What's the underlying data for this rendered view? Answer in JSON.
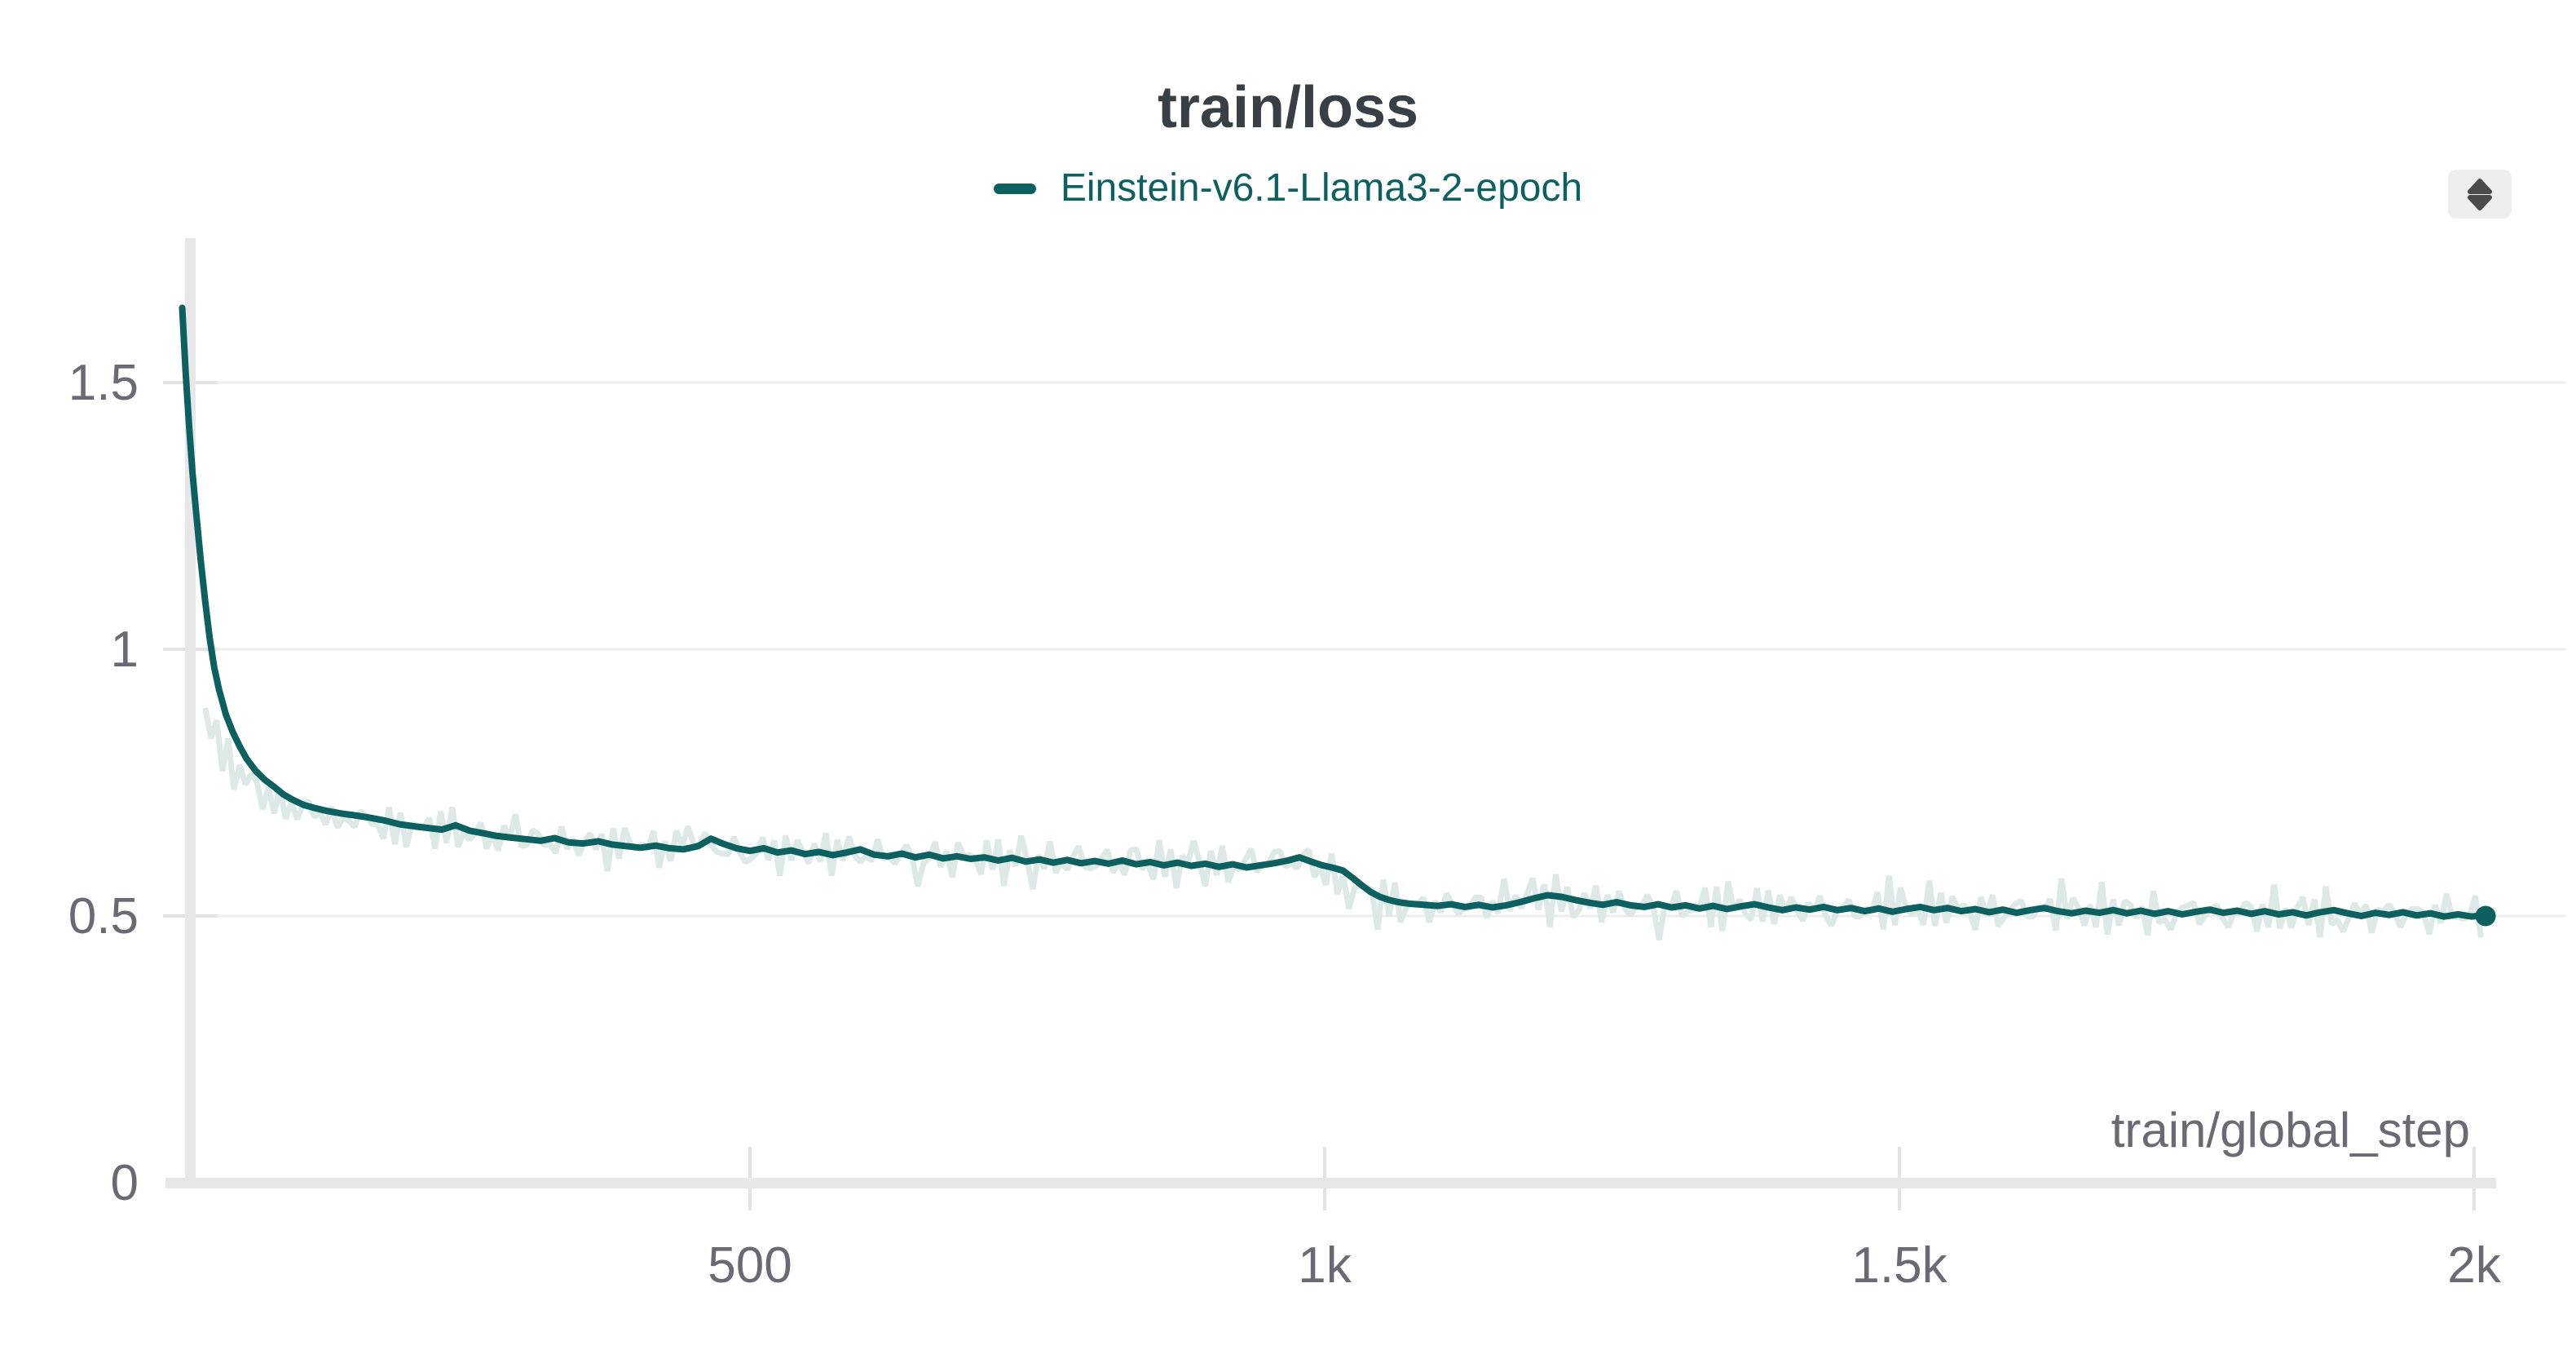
{
  "header": {
    "title": "train/loss"
  },
  "legend": {
    "items": [
      {
        "label": "Einstein-v6.1-Llama3-2-epoch",
        "color": "#0d6060"
      }
    ]
  },
  "controls": {
    "expander_icon": "up-down-arrows"
  },
  "colors": {
    "smoothed_line": "#0d6060",
    "raw_line": "#dde9e6",
    "grid": "#ededee",
    "axis_band": "#e7e7e9",
    "tick_stub": "#e3e3e5",
    "tick_label": "#696a74",
    "title_text": "#394045"
  },
  "chart_data": {
    "type": "line",
    "title": "train/loss",
    "xlabel": "train/global_step",
    "ylabel": "",
    "xlim": [
      0,
      2080
    ],
    "ylim": [
      0,
      1.75
    ],
    "grid": true,
    "legend_position": "top-center",
    "x_ticks": [
      {
        "value": 500,
        "label": "500"
      },
      {
        "value": 1000,
        "label": "1k"
      },
      {
        "value": 1500,
        "label": "1.5k"
      },
      {
        "value": 2000,
        "label": "2k"
      }
    ],
    "y_ticks": [
      {
        "value": 0,
        "label": "0"
      },
      {
        "value": 0.5,
        "label": "0.5"
      },
      {
        "value": 1,
        "label": "1"
      },
      {
        "value": 1.5,
        "label": "1.5"
      }
    ],
    "series": [
      {
        "name": "Einstein-v6.1-Llama3-2-epoch",
        "color": "#0d6060",
        "smoothing_note": "dark line = smoothed, light line = original (raw) values",
        "smoothed": [
          [
            6,
            1.64
          ],
          [
            9,
            1.52
          ],
          [
            12,
            1.42
          ],
          [
            15,
            1.33
          ],
          [
            18,
            1.26
          ],
          [
            22,
            1.17
          ],
          [
            26,
            1.09
          ],
          [
            30,
            1.02
          ],
          [
            34,
            0.965
          ],
          [
            38,
            0.925
          ],
          [
            44,
            0.878
          ],
          [
            50,
            0.845
          ],
          [
            56,
            0.818
          ],
          [
            62,
            0.795
          ],
          [
            70,
            0.772
          ],
          [
            78,
            0.755
          ],
          [
            86,
            0.742
          ],
          [
            94,
            0.728
          ],
          [
            102,
            0.718
          ],
          [
            112,
            0.708
          ],
          [
            122,
            0.702
          ],
          [
            132,
            0.697
          ],
          [
            145,
            0.692
          ],
          [
            158,
            0.688
          ],
          [
            170,
            0.684
          ],
          [
            182,
            0.679
          ],
          [
            195,
            0.672
          ],
          [
            208,
            0.668
          ],
          [
            220,
            0.665
          ],
          [
            232,
            0.662
          ],
          [
            244,
            0.67
          ],
          [
            256,
            0.66
          ],
          [
            268,
            0.655
          ],
          [
            280,
            0.65
          ],
          [
            292,
            0.647
          ],
          [
            305,
            0.644
          ],
          [
            318,
            0.641
          ],
          [
            330,
            0.646
          ],
          [
            342,
            0.638
          ],
          [
            355,
            0.636
          ],
          [
            368,
            0.64
          ],
          [
            380,
            0.634
          ],
          [
            392,
            0.631
          ],
          [
            405,
            0.628
          ],
          [
            418,
            0.632
          ],
          [
            430,
            0.627
          ],
          [
            442,
            0.625
          ],
          [
            455,
            0.631
          ],
          [
            466,
            0.645
          ],
          [
            476,
            0.636
          ],
          [
            488,
            0.627
          ],
          [
            500,
            0.622
          ],
          [
            512,
            0.627
          ],
          [
            524,
            0.619
          ],
          [
            536,
            0.623
          ],
          [
            548,
            0.616
          ],
          [
            560,
            0.62
          ],
          [
            572,
            0.614
          ],
          [
            584,
            0.619
          ],
          [
            596,
            0.625
          ],
          [
            608,
            0.615
          ],
          [
            620,
            0.612
          ],
          [
            632,
            0.617
          ],
          [
            644,
            0.61
          ],
          [
            656,
            0.615
          ],
          [
            668,
            0.608
          ],
          [
            680,
            0.612
          ],
          [
            692,
            0.607
          ],
          [
            704,
            0.61
          ],
          [
            716,
            0.604
          ],
          [
            728,
            0.609
          ],
          [
            740,
            0.602
          ],
          [
            752,
            0.606
          ],
          [
            764,
            0.6
          ],
          [
            776,
            0.605
          ],
          [
            788,
            0.599
          ],
          [
            800,
            0.603
          ],
          [
            812,
            0.598
          ],
          [
            824,
            0.604
          ],
          [
            836,
            0.597
          ],
          [
            848,
            0.601
          ],
          [
            860,
            0.595
          ],
          [
            872,
            0.6
          ],
          [
            884,
            0.594
          ],
          [
            896,
            0.598
          ],
          [
            908,
            0.592
          ],
          [
            920,
            0.597
          ],
          [
            932,
            0.591
          ],
          [
            944,
            0.595
          ],
          [
            956,
            0.599
          ],
          [
            968,
            0.604
          ],
          [
            978,
            0.61
          ],
          [
            988,
            0.602
          ],
          [
            998,
            0.595
          ],
          [
            1008,
            0.59
          ],
          [
            1016,
            0.585
          ],
          [
            1024,
            0.572
          ],
          [
            1032,
            0.558
          ],
          [
            1040,
            0.545
          ],
          [
            1048,
            0.536
          ],
          [
            1056,
            0.53
          ],
          [
            1064,
            0.526
          ],
          [
            1074,
            0.523
          ],
          [
            1086,
            0.521
          ],
          [
            1098,
            0.519
          ],
          [
            1110,
            0.522
          ],
          [
            1122,
            0.517
          ],
          [
            1134,
            0.521
          ],
          [
            1146,
            0.516
          ],
          [
            1158,
            0.52
          ],
          [
            1170,
            0.526
          ],
          [
            1182,
            0.533
          ],
          [
            1194,
            0.539
          ],
          [
            1206,
            0.536
          ],
          [
            1218,
            0.53
          ],
          [
            1230,
            0.525
          ],
          [
            1242,
            0.521
          ],
          [
            1254,
            0.526
          ],
          [
            1266,
            0.52
          ],
          [
            1278,
            0.517
          ],
          [
            1290,
            0.522
          ],
          [
            1302,
            0.516
          ],
          [
            1314,
            0.52
          ],
          [
            1326,
            0.514
          ],
          [
            1338,
            0.519
          ],
          [
            1350,
            0.513
          ],
          [
            1362,
            0.518
          ],
          [
            1374,
            0.522
          ],
          [
            1386,
            0.516
          ],
          [
            1398,
            0.511
          ],
          [
            1410,
            0.516
          ],
          [
            1422,
            0.512
          ],
          [
            1434,
            0.517
          ],
          [
            1446,
            0.511
          ],
          [
            1458,
            0.515
          ],
          [
            1470,
            0.509
          ],
          [
            1482,
            0.514
          ],
          [
            1494,
            0.508
          ],
          [
            1506,
            0.513
          ],
          [
            1518,
            0.517
          ],
          [
            1530,
            0.511
          ],
          [
            1542,
            0.515
          ],
          [
            1554,
            0.509
          ],
          [
            1566,
            0.513
          ],
          [
            1578,
            0.507
          ],
          [
            1590,
            0.512
          ],
          [
            1602,
            0.506
          ],
          [
            1614,
            0.511
          ],
          [
            1626,
            0.515
          ],
          [
            1638,
            0.509
          ],
          [
            1650,
            0.505
          ],
          [
            1662,
            0.51
          ],
          [
            1674,
            0.506
          ],
          [
            1686,
            0.511
          ],
          [
            1698,
            0.505
          ],
          [
            1710,
            0.51
          ],
          [
            1722,
            0.504
          ],
          [
            1734,
            0.509
          ],
          [
            1746,
            0.503
          ],
          [
            1758,
            0.508
          ],
          [
            1770,
            0.512
          ],
          [
            1782,
            0.506
          ],
          [
            1794,
            0.51
          ],
          [
            1806,
            0.504
          ],
          [
            1818,
            0.509
          ],
          [
            1830,
            0.503
          ],
          [
            1842,
            0.507
          ],
          [
            1854,
            0.501
          ],
          [
            1866,
            0.507
          ],
          [
            1878,
            0.511
          ],
          [
            1890,
            0.505
          ],
          [
            1902,
            0.5
          ],
          [
            1914,
            0.506
          ],
          [
            1926,
            0.502
          ],
          [
            1938,
            0.507
          ],
          [
            1950,
            0.501
          ],
          [
            1962,
            0.505
          ],
          [
            1974,
            0.499
          ],
          [
            1986,
            0.503
          ],
          [
            1998,
            0.499
          ],
          [
            2006,
            0.501
          ],
          [
            2010,
            0.5
          ]
        ],
        "raw_style": {
          "color": "#dde9e6",
          "amplitude": 0.05,
          "amplitude_after_epoch1": 0.058,
          "lag_steps": 16,
          "from_step": 26,
          "to_step": 2010
        },
        "end_marker": {
          "step": 2010,
          "value": 0.5
        }
      }
    ]
  }
}
